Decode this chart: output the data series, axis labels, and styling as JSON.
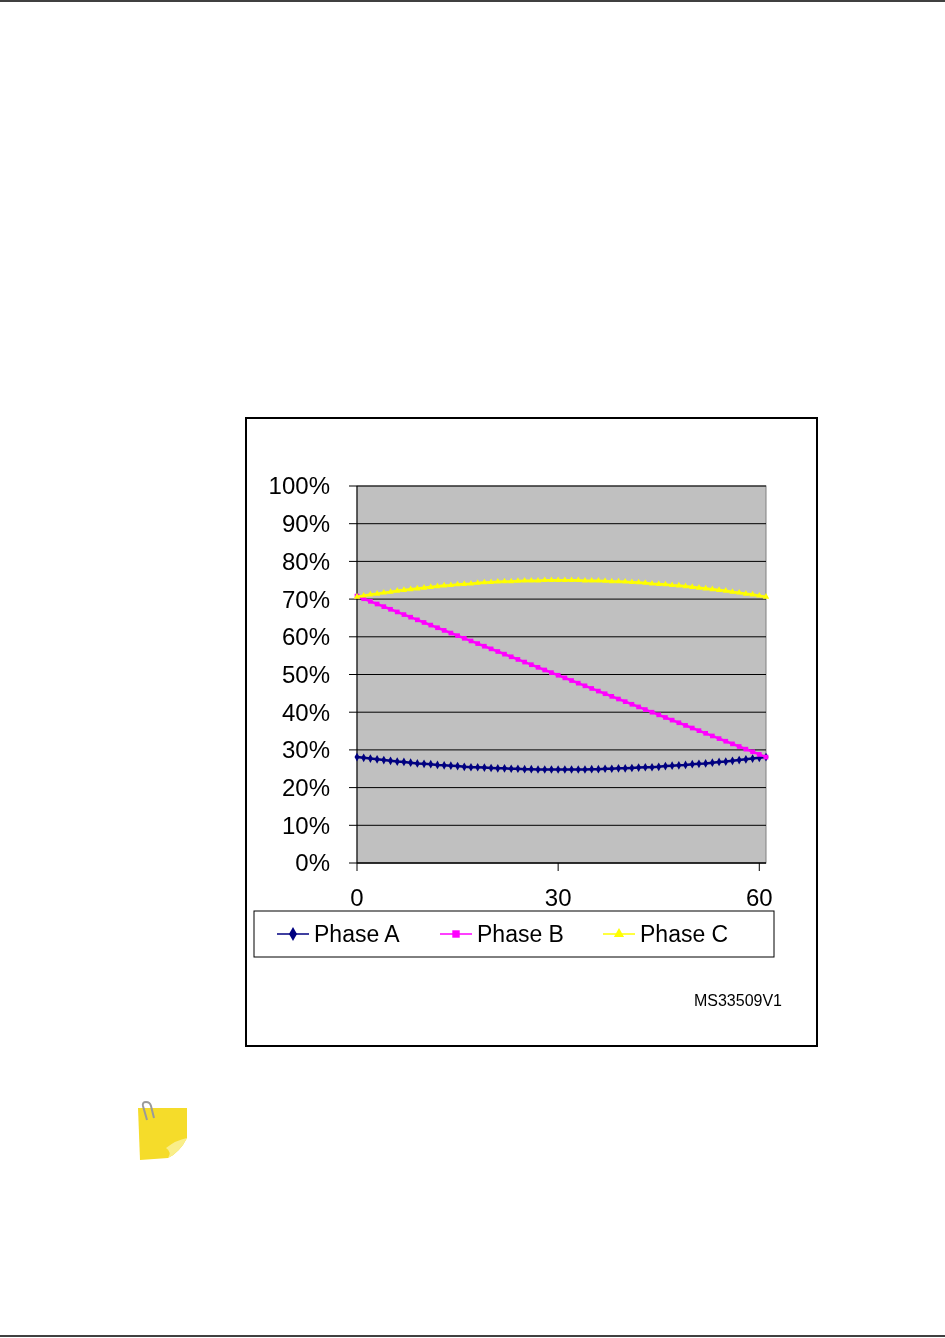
{
  "chart_data": {
    "type": "line",
    "x": [
      0,
      1,
      2,
      3,
      4,
      5,
      6,
      7,
      8,
      9,
      10,
      11,
      12,
      13,
      14,
      15,
      16,
      17,
      18,
      19,
      20,
      21,
      22,
      23,
      24,
      25,
      26,
      27,
      28,
      29,
      30,
      31,
      32,
      33,
      34,
      35,
      36,
      37,
      38,
      39,
      40,
      41,
      42,
      43,
      44,
      45,
      46,
      47,
      48,
      49,
      50,
      51,
      52,
      53,
      54,
      55,
      56,
      57,
      58,
      59,
      60,
      61
    ],
    "series": [
      {
        "name": "Phase A",
        "color": "#000080",
        "marker": "diamond",
        "values": [
          28.1,
          27.9,
          27.7,
          27.5,
          27.3,
          27.1,
          26.9,
          26.8,
          26.6,
          26.4,
          26.3,
          26.2,
          26.0,
          25.9,
          25.8,
          25.7,
          25.5,
          25.4,
          25.4,
          25.3,
          25.2,
          25.1,
          25.1,
          25.0,
          25.0,
          24.9,
          24.9,
          24.8,
          24.8,
          24.8,
          24.8,
          24.8,
          24.8,
          24.8,
          24.8,
          24.9,
          24.9,
          25.0,
          25.0,
          25.1,
          25.1,
          25.2,
          25.3,
          25.4,
          25.4,
          25.5,
          25.7,
          25.8,
          25.9,
          26.0,
          26.2,
          26.3,
          26.4,
          26.6,
          26.8,
          26.9,
          27.1,
          27.3,
          27.5,
          27.7,
          27.9,
          28.1
        ]
      },
      {
        "name": "Phase B",
        "color": "#ff00ff",
        "marker": "square",
        "values": [
          70.8,
          70.1,
          69.4,
          68.7,
          68.0,
          67.3,
          66.6,
          65.9,
          65.2,
          64.5,
          63.8,
          63.1,
          62.4,
          61.7,
          61.0,
          60.3,
          59.6,
          58.9,
          58.2,
          57.5,
          56.8,
          56.1,
          55.4,
          54.7,
          54.0,
          53.3,
          52.6,
          51.9,
          51.2,
          50.5,
          49.8,
          49.1,
          48.4,
          47.7,
          47.0,
          46.3,
          45.6,
          44.9,
          44.2,
          43.5,
          42.8,
          42.1,
          41.4,
          40.7,
          40.0,
          39.3,
          38.6,
          37.9,
          37.2,
          36.5,
          35.8,
          35.1,
          34.4,
          33.7,
          33.0,
          32.3,
          31.6,
          30.9,
          30.2,
          29.5,
          28.8,
          28.1
        ]
      },
      {
        "name": "Phase C",
        "color": "#ffff00",
        "marker": "triangle",
        "values": [
          70.6,
          70.9,
          71.2,
          71.4,
          71.7,
          71.9,
          72.2,
          72.4,
          72.6,
          72.8,
          73.0,
          73.2,
          73.4,
          73.6,
          73.7,
          73.9,
          74.0,
          74.1,
          74.3,
          74.4,
          74.5,
          74.6,
          74.7,
          74.7,
          74.8,
          74.9,
          74.9,
          74.9,
          75.0,
          75.0,
          75.0,
          75.0,
          75.0,
          75.0,
          74.9,
          74.9,
          74.9,
          74.8,
          74.7,
          74.7,
          74.6,
          74.5,
          74.4,
          74.3,
          74.1,
          74.0,
          73.9,
          73.7,
          73.6,
          73.4,
          73.2,
          73.0,
          72.8,
          72.6,
          72.4,
          72.2,
          71.9,
          71.7,
          71.4,
          71.2,
          70.9,
          70.6
        ]
      }
    ],
    "xlim": [
      0,
      61
    ],
    "xticks": [
      0,
      30,
      60
    ],
    "ylim": [
      0,
      100
    ],
    "yticks": [
      {
        "value": 0,
        "label": "0%"
      },
      {
        "value": 10,
        "label": "10%"
      },
      {
        "value": 20,
        "label": "20%"
      },
      {
        "value": 30,
        "label": "30%"
      },
      {
        "value": 40,
        "label": "40%"
      },
      {
        "value": 50,
        "label": "50%"
      },
      {
        "value": 60,
        "label": "60%"
      },
      {
        "value": 70,
        "label": "70%"
      },
      {
        "value": 80,
        "label": "80%"
      },
      {
        "value": 90,
        "label": "90%"
      },
      {
        "value": 100,
        "label": "100%"
      }
    ],
    "grid": "y",
    "legend": "bottom",
    "annotations": [
      "MS33509V1"
    ]
  }
}
